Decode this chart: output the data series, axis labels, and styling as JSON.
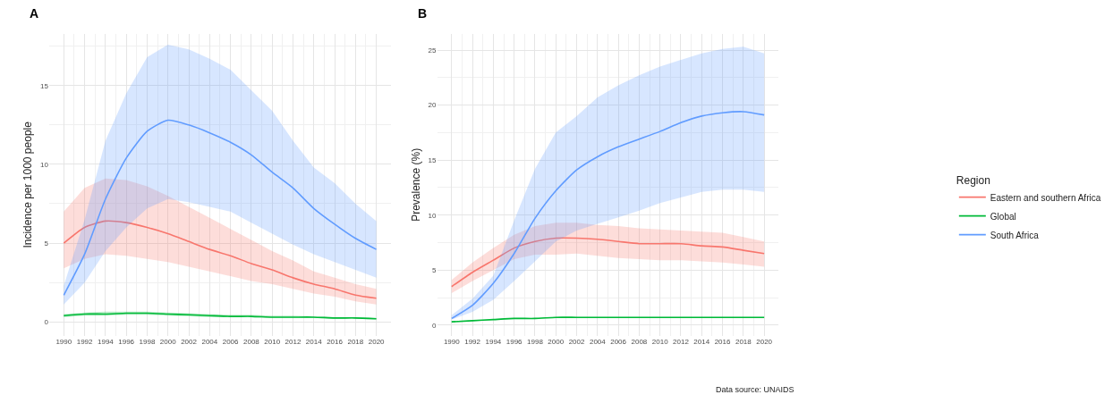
{
  "chart_data": [
    {
      "type": "line",
      "title": "A",
      "ylabel": "Incidence per 1000 people",
      "x": [
        1990,
        1992,
        1994,
        1996,
        1998,
        2000,
        2002,
        2004,
        2006,
        2008,
        2010,
        2012,
        2014,
        2016,
        2018,
        2020
      ],
      "xlim": [
        1988.6,
        2021.4
      ],
      "xticks": [
        1990,
        1992,
        1994,
        1996,
        1998,
        2000,
        2002,
        2004,
        2006,
        2008,
        2010,
        2012,
        2014,
        2016,
        2018,
        2020
      ],
      "ylim": [
        -0.9,
        18.3
      ],
      "yticks": [
        0,
        5,
        10,
        15
      ],
      "grid": true,
      "series": [
        {
          "color": "#f8766d",
          "values": [
            5.0,
            6.0,
            6.4,
            6.3,
            6.0,
            5.6,
            5.1,
            4.6,
            4.2,
            3.7,
            3.3,
            2.8,
            2.4,
            2.1,
            1.7,
            1.5
          ],
          "lower": [
            3.4,
            4.0,
            4.3,
            4.2,
            4.0,
            3.8,
            3.5,
            3.2,
            2.9,
            2.6,
            2.4,
            2.1,
            1.8,
            1.6,
            1.3,
            1.1
          ],
          "upper": [
            7.0,
            8.5,
            9.1,
            9.0,
            8.6,
            8.0,
            7.3,
            6.6,
            5.9,
            5.2,
            4.5,
            3.9,
            3.2,
            2.8,
            2.4,
            2.1
          ]
        },
        {
          "color": "#00ba38",
          "values": [
            0.4,
            0.5,
            0.5,
            0.55,
            0.55,
            0.5,
            0.45,
            0.4,
            0.35,
            0.35,
            0.3,
            0.3,
            0.3,
            0.25,
            0.25,
            0.2
          ],
          "lower": [
            0.3,
            0.4,
            0.4,
            0.45,
            0.45,
            0.4,
            0.35,
            0.3,
            0.3,
            0.3,
            0.25,
            0.25,
            0.25,
            0.2,
            0.2,
            0.15
          ],
          "upper": [
            0.5,
            0.6,
            0.65,
            0.65,
            0.65,
            0.6,
            0.55,
            0.5,
            0.45,
            0.45,
            0.4,
            0.4,
            0.35,
            0.3,
            0.3,
            0.25
          ]
        },
        {
          "color": "#619cff",
          "values": [
            1.7,
            4.3,
            7.8,
            10.4,
            12.1,
            12.8,
            12.5,
            12.0,
            11.4,
            10.6,
            9.5,
            8.5,
            7.2,
            6.2,
            5.3,
            4.6
          ],
          "lower": [
            1.1,
            2.5,
            4.5,
            6.0,
            7.2,
            7.8,
            7.6,
            7.3,
            7.0,
            6.3,
            5.6,
            4.9,
            4.3,
            3.8,
            3.3,
            2.8
          ],
          "upper": [
            2.3,
            6.5,
            11.5,
            14.5,
            16.8,
            17.6,
            17.3,
            16.7,
            16.0,
            14.7,
            13.4,
            11.5,
            9.8,
            8.8,
            7.5,
            6.4
          ]
        }
      ]
    },
    {
      "type": "line",
      "title": "B",
      "ylabel": "Prevalence (%)",
      "x": [
        1990,
        1992,
        1994,
        1996,
        1998,
        2000,
        2002,
        2004,
        2006,
        2008,
        2010,
        2012,
        2014,
        2016,
        2018,
        2020
      ],
      "xlim": [
        1988.6,
        2021.4
      ],
      "xticks": [
        1990,
        1992,
        1994,
        1996,
        1998,
        2000,
        2002,
        2004,
        2006,
        2008,
        2010,
        2012,
        2014,
        2016,
        2018,
        2020
      ],
      "ylim": [
        -1.0,
        26.5
      ],
      "yticks": [
        0,
        5,
        10,
        15,
        20,
        25
      ],
      "grid": true,
      "legend": "right",
      "legend_title": "Region",
      "annotations": [
        "Data source: UNAIDS"
      ],
      "series": [
        {
          "name": "Eastern and southern Africa",
          "color": "#f8766d",
          "values": [
            3.5,
            4.8,
            5.9,
            7.0,
            7.6,
            7.9,
            7.9,
            7.8,
            7.6,
            7.4,
            7.4,
            7.4,
            7.2,
            7.1,
            6.8,
            6.5
          ],
          "lower": [
            2.9,
            4.0,
            5.0,
            6.0,
            6.4,
            6.4,
            6.5,
            6.3,
            6.1,
            6.0,
            5.9,
            5.9,
            5.8,
            5.7,
            5.5,
            5.3
          ],
          "upper": [
            4.1,
            5.7,
            7.0,
            8.2,
            9.0,
            9.3,
            9.3,
            9.1,
            9.0,
            8.8,
            8.7,
            8.6,
            8.5,
            8.4,
            8.0,
            7.6
          ]
        },
        {
          "name": "Global",
          "color": "#00ba38",
          "values": [
            0.3,
            0.4,
            0.5,
            0.6,
            0.6,
            0.7,
            0.7,
            0.7,
            0.7,
            0.7,
            0.7,
            0.7,
            0.7,
            0.7,
            0.7,
            0.7
          ],
          "lower": [
            0.25,
            0.35,
            0.45,
            0.55,
            0.55,
            0.65,
            0.65,
            0.65,
            0.65,
            0.65,
            0.65,
            0.65,
            0.65,
            0.65,
            0.65,
            0.65
          ],
          "upper": [
            0.35,
            0.45,
            0.55,
            0.65,
            0.65,
            0.75,
            0.75,
            0.75,
            0.75,
            0.75,
            0.75,
            0.75,
            0.75,
            0.75,
            0.75,
            0.75
          ]
        },
        {
          "name": "South Africa",
          "color": "#619cff",
          "values": [
            0.6,
            1.8,
            3.8,
            6.5,
            9.7,
            12.2,
            14.1,
            15.3,
            16.2,
            16.9,
            17.6,
            18.4,
            19.0,
            19.3,
            19.4,
            19.1
          ],
          "lower": [
            0.5,
            1.2,
            2.3,
            4.0,
            5.8,
            7.6,
            8.6,
            9.2,
            9.8,
            10.4,
            11.1,
            11.6,
            12.1,
            12.3,
            12.3,
            12.1
          ],
          "upper": [
            0.9,
            2.4,
            4.5,
            9.5,
            14.2,
            17.5,
            19.0,
            20.7,
            21.8,
            22.7,
            23.5,
            24.1,
            24.7,
            25.1,
            25.3,
            24.7
          ]
        }
      ]
    }
  ]
}
